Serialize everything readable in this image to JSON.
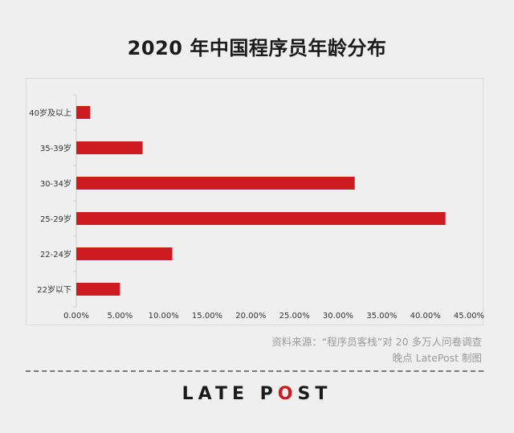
{
  "title": "2020 年中国程序员年龄分布",
  "source_line1": "资料来源：“程序员客栈”对 20 多万人问卷调查",
  "source_line2": "晚点 LatePost 制图",
  "logo": {
    "part1": "LATE P",
    "part2": "O",
    "part3": "ST"
  },
  "colors": {
    "bar": "#cc1a1f",
    "background": "#efefef",
    "text": "#1b1b1b"
  },
  "chart_data": {
    "type": "bar",
    "orientation": "horizontal",
    "categories": [
      "40岁及以上",
      "35-39岁",
      "30-34岁",
      "25-29岁",
      "22-24岁",
      "22岁以下"
    ],
    "values": [
      1.6,
      7.6,
      31.9,
      42.3,
      11.0,
      5.0
    ],
    "xlim": [
      0,
      45
    ],
    "xticks": [
      0,
      5,
      10,
      15,
      20,
      25,
      30,
      35,
      40,
      45
    ],
    "xtick_labels": [
      "0.00%",
      "5.00%",
      "10.00%",
      "15.00%",
      "20.00%",
      "25.00%",
      "30.00%",
      "35.00%",
      "40.00%",
      "45.00%"
    ],
    "grid": false,
    "title": "2020 年中国程序员年龄分布"
  }
}
